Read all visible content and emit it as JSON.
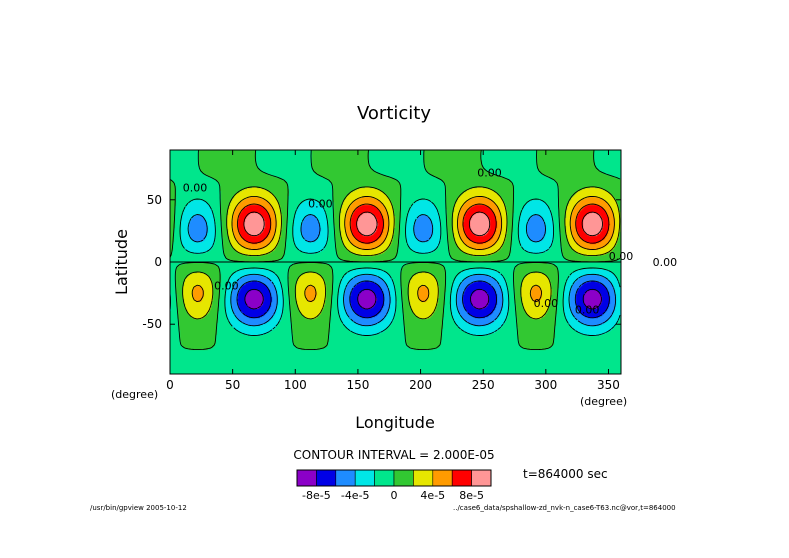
{
  "chart_data": {
    "type": "heatmap",
    "subtype": "filled-contour",
    "title": "Vorticity",
    "xlabel": "Longitude",
    "ylabel": "Latitude",
    "x_unit_label": "(degree)",
    "y_unit_label": "(degree)",
    "xlim": [
      0,
      360
    ],
    "ylim": [
      -90,
      90
    ],
    "x_ticks": [
      0,
      50,
      100,
      150,
      200,
      250,
      300,
      350
    ],
    "y_ticks": [
      -50,
      0,
      50
    ],
    "contour_interval_text": "CONTOUR INTERVAL = 2.000E-05",
    "time_text": "t=864000 sec",
    "contour_labels": [
      "0.00",
      "0.00",
      "0.00",
      "0.00",
      "0.00",
      "0.00",
      "0.00",
      "0.00",
      "0.00"
    ],
    "colorbar": {
      "levels": [
        -0.0001,
        -8e-05,
        -6e-05,
        -4e-05,
        -2e-05,
        0,
        2e-05,
        4e-05,
        6e-05,
        8e-05,
        0.0001
      ],
      "colors": [
        "#8b00c8",
        "#0000e6",
        "#1e8cff",
        "#00e6e6",
        "#00e68c",
        "#32c832",
        "#e6e600",
        "#ff9b00",
        "#ff0000",
        "#ff9696"
      ],
      "tick_labels": [
        "-8e-5",
        "-4e-5",
        "0",
        "4e-5",
        "8e-5"
      ],
      "tick_values": [
        -8e-05,
        -4e-05,
        0,
        4e-05,
        8e-05
      ]
    },
    "field": {
      "wave_number": 4,
      "north_positive_centers_lon": [
        67.5,
        157.5,
        247.5,
        337.5
      ],
      "north_positive_center_lat": 30,
      "north_negative_centers_lon": [
        22.5,
        112.5,
        202.5,
        292.5
      ],
      "south_negative_centers_lon": [
        67.5,
        157.5,
        247.5,
        337.5
      ],
      "south_negative_center_lat": -30,
      "south_positive_centers_lon": [
        22.5,
        112.5,
        202.5,
        292.5
      ],
      "peak_positive": 9.5e-05,
      "peak_negative": -9e-05
    }
  },
  "footer": {
    "left": "/usr/bin/gpview  2005-10-12",
    "right": "../case6_data/spshallow-zd_nvk-n_case6-T63.nc@vor,t=864000"
  }
}
